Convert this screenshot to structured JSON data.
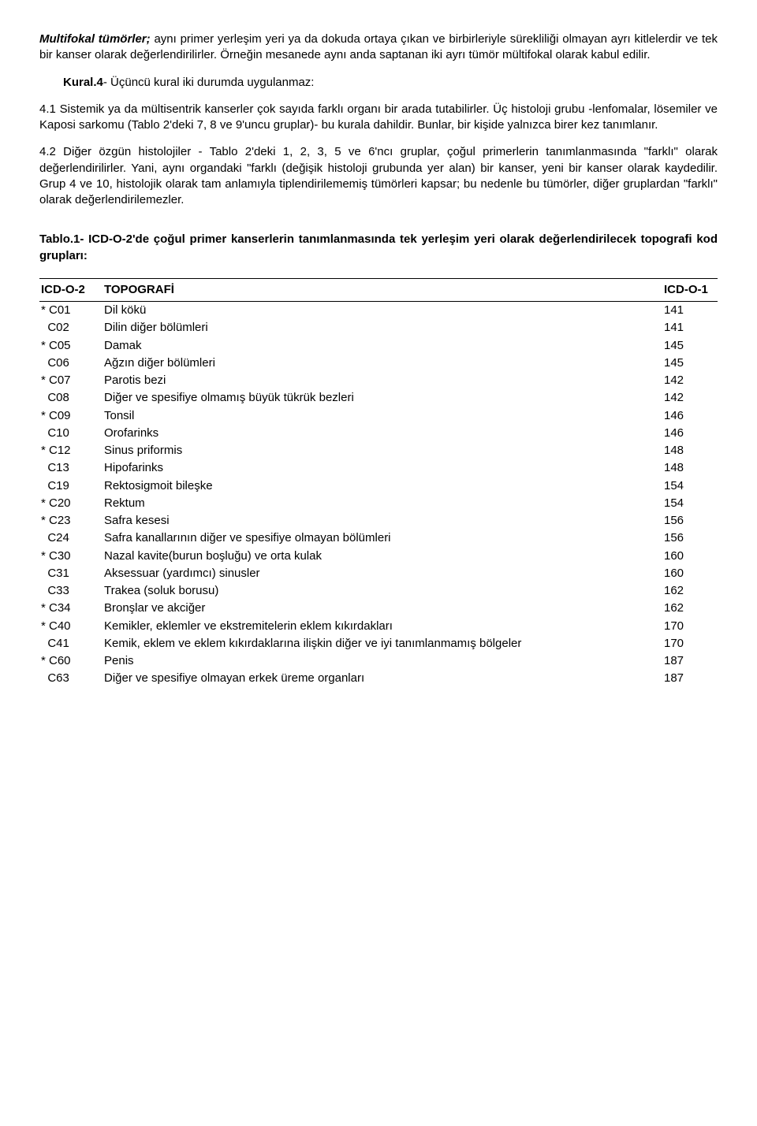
{
  "para1": {
    "lead": "Multifokal tümörler;",
    "rest": " aynı primer yerleşim yeri ya da dokuda ortaya çıkan ve birbirleriyle sürekliliği olmayan ayrı kitlelerdir ve tek bir kanser olarak değerlendirilirler. Örneğin mesanede aynı anda saptanan iki ayrı tümör mültifokal olarak kabul edilir."
  },
  "kural_label": "Kural.4",
  "kural_text": "- Üçüncü kural iki durumda uygulanmaz:",
  "para3": "4.1 Sistemik ya da mültisentrik kanserler çok sayıda farklı organı bir arada tutabilirler. Üç histoloji grubu -lenfomalar, lösemiler ve Kaposi sarkomu (Tablo 2'deki 7, 8 ve 9'uncu gruplar)- bu kurala dahildir. Bunlar, bir kişide yalnızca birer kez tanımlanır.",
  "para4": "4.2 Diğer özgün histolojiler - Tablo 2'deki 1, 2, 3, 5 ve 6'ncı gruplar, çoğul primerlerin tanımlanmasında \"farklı\" olarak değerlendirilirler. Yani, aynı organdaki \"farklı (değişik histoloji grubunda yer alan) bir kanser, yeni bir kanser olarak kaydedilir. Grup 4 ve 10, histolojik olarak tam anlamıyla tiplendirilememiş tümörleri kapsar; bu nedenle bu tümörler, diğer gruplardan \"farklı\" olarak değerlendirilemezler.",
  "table_title": "Tablo.1- ICD-O-2'de çoğul primer kanserlerin tanımlanmasında tek yerleşim yeri olarak değerlendirilecek topografi kod grupları:",
  "headers": {
    "col1": "ICD-O-2",
    "col2": "TOPOGRAFİ",
    "col3": "ICD-O-1"
  },
  "rows": [
    {
      "code": "* C01",
      "topo": "Dil kökü",
      "icd1": "141"
    },
    {
      "code": "  C02",
      "topo": "Dilin diğer bölümleri",
      "icd1": "141"
    },
    {
      "code": "* C05",
      "topo": "Damak",
      "icd1": "145"
    },
    {
      "code": "  C06",
      "topo": "Ağzın diğer bölümleri",
      "icd1": "145"
    },
    {
      "code": "* C07",
      "topo": "Parotis bezi",
      "icd1": "142"
    },
    {
      "code": "  C08",
      "topo": "Diğer ve spesifiye olmamış büyük tükrük bezleri",
      "icd1": "142"
    },
    {
      "code": "* C09",
      "topo": "Tonsil",
      "icd1": "146"
    },
    {
      "code": "  C10",
      "topo": "Orofarinks",
      "icd1": "146"
    },
    {
      "code": "* C12",
      "topo": "Sinus priformis",
      "icd1": "148"
    },
    {
      "code": "  C13",
      "topo": "Hipofarinks",
      "icd1": "148"
    },
    {
      "code": "  C19",
      "topo": "Rektosigmoit bileşke",
      "icd1": "154"
    },
    {
      "code": "* C20",
      "topo": "Rektum",
      "icd1": "154"
    },
    {
      "code": "* C23",
      "topo": "Safra kesesi",
      "icd1": "156"
    },
    {
      "code": "  C24",
      "topo": "Safra kanallarının diğer ve spesifiye olmayan bölümleri",
      "icd1": "156"
    },
    {
      "code": "* C30",
      "topo": "Nazal kavite(burun boşluğu) ve orta kulak",
      "icd1": "160"
    },
    {
      "code": "  C31",
      "topo": "Aksessuar (yardımcı) sinusler",
      "icd1": "160"
    },
    {
      "code": "  C33",
      "topo": "Trakea (soluk borusu)",
      "icd1": "162"
    },
    {
      "code": "* C34",
      "topo": "Bronşlar ve akciğer",
      "icd1": "162"
    },
    {
      "code": "* C40",
      "topo": "Kemikler, eklemler ve ekstremitelerin eklem kıkırdakları",
      "icd1": "170"
    },
    {
      "code": "  C41",
      "topo": "Kemik, eklem ve eklem kıkırdaklarına ilişkin diğer ve iyi tanımlanmamış bölgeler",
      "icd1": "170"
    },
    {
      "code": "* C60",
      "topo": "Penis",
      "icd1": "187"
    },
    {
      "code": "  C63",
      "topo": "Diğer ve spesifiye olmayan erkek üreme organları",
      "icd1": "187"
    }
  ]
}
